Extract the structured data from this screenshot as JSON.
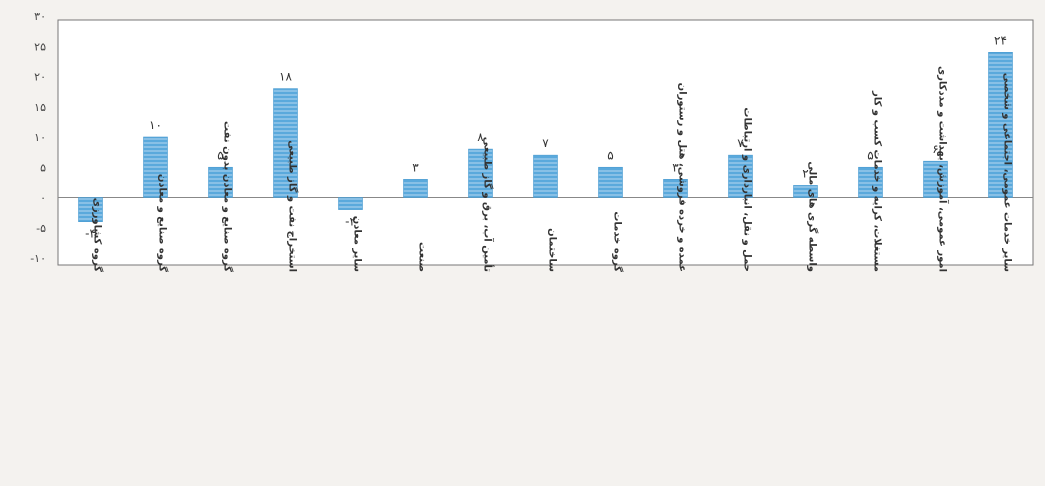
{
  "chart_data": {
    "type": "bar",
    "title": "",
    "xlabel": "",
    "ylabel": "",
    "ylim": [
      -10,
      30
    ],
    "yticks": [
      30,
      25,
      20,
      15,
      10,
      5,
      0,
      -5,
      -10
    ],
    "ytick_labels": [
      "۳۰",
      "۲۵",
      "۲۰",
      "۱۵",
      "۱۰",
      "۵",
      "۰",
      "-۵",
      "-۱۰"
    ],
    "grid": false,
    "bar_color": "#5aa9dc",
    "categories": [
      "گروه کشاورزی",
      "گروه صنایع و معادن",
      "گروه صنایع و معادن بدون نفت",
      "استخراج نفت و گاز طبیعی",
      "سایر معادن",
      "صنعت",
      "تأمین آب، برق و گاز طبیعی",
      "ساختمان",
      "گروه خدمات",
      "عمده و خرده فروشی، هتل و رستوران",
      "حمل و نقل، انبارداری و ارتباطات",
      "واسطه گری های مالی",
      "مستغلات، کرایه و خدمات کسب و کار",
      "امور عمومی، آموزش، بهداشت و مددکاری",
      "سایر خدمات عمومی، اجتماعی و شخصی"
    ],
    "values": [
      -4,
      10,
      5,
      18,
      -2,
      3,
      8,
      7,
      5,
      3,
      7,
      2,
      5,
      6,
      24
    ],
    "data_labels": [
      "-۴",
      "۱۰",
      "۵",
      "۱۸",
      "-۲",
      "۳",
      "۸",
      "۷",
      "۵",
      "۳",
      "۷",
      "۲",
      "۵",
      "۶",
      "۲۴"
    ]
  }
}
